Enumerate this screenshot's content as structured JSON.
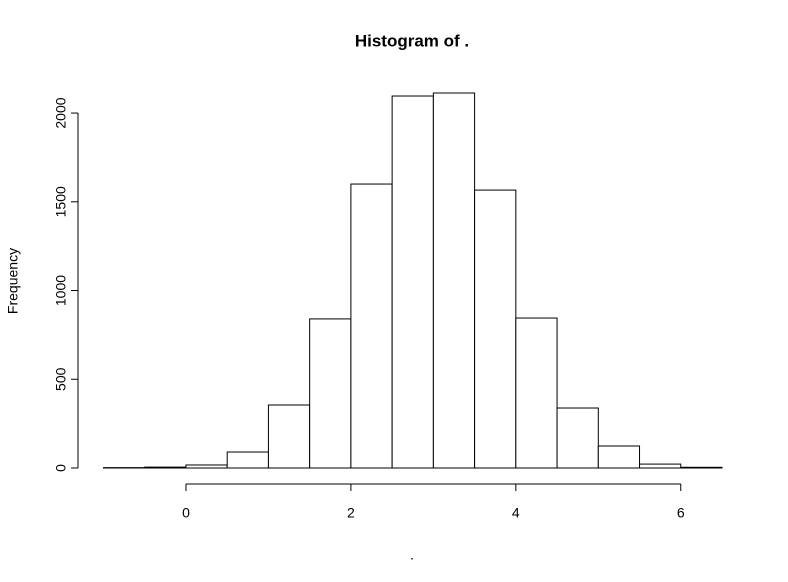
{
  "chart_data": {
    "type": "histogram",
    "title": "Histogram of .",
    "x_label": ".",
    "y_label": "Frequency",
    "bins": [
      -1,
      -0.5,
      0,
      0.5,
      1,
      1.5,
      2,
      2.5,
      3,
      3.5,
      4,
      4.5,
      5,
      5.5,
      6,
      6.5
    ],
    "values": [
      2,
      5,
      17,
      90,
      355,
      840,
      1600,
      2096,
      2113,
      1566,
      845,
      338,
      124,
      22,
      4
    ],
    "color": "#ffffff",
    "xlim": [
      -1,
      6.5
    ],
    "xticks": [
      0,
      2,
      4,
      6
    ],
    "ylim": [
      0,
      2113
    ],
    "yticks": [
      0,
      500,
      1000,
      1500,
      2000
    ]
  }
}
